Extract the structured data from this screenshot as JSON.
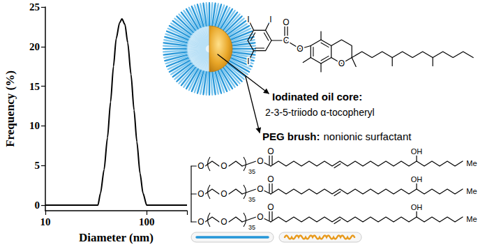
{
  "chart_data": {
    "type": "line",
    "xlabel": "Diameter (nm)",
    "ylabel": "Frequency (%)",
    "x": [
      10,
      33,
      35,
      38,
      41,
      44,
      47,
      50,
      54,
      57,
      61,
      65,
      70,
      75,
      80,
      86,
      92,
      100,
      250
    ],
    "values": [
      0,
      0,
      1.5,
      4.5,
      8.5,
      13,
      17.5,
      21,
      23,
      23.5,
      22.8,
      20.5,
      16.5,
      12,
      8,
      4,
      1.5,
      0,
      0
    ],
    "color": "#000000",
    "log": "x",
    "xlim": [
      10,
      250
    ],
    "xticks": [
      10,
      100
    ],
    "ylim": [
      -0.7,
      25
    ],
    "yticks": [
      0,
      5,
      10,
      15,
      20,
      25
    ],
    "grid": false
  },
  "diagram": {
    "core_label": "Iodinated oil core:",
    "core_name": "2-3-5-triiodo α-tocopheryl",
    "brush_label": "PEG brush:",
    "brush_name": "nonionic surfactant",
    "tocopheryl_ester": {
      "iodine": [
        "I",
        "I",
        "I"
      ],
      "carbonyl_carbon": "C",
      "carbonyl_oxygen": "O",
      "ester_oxygen": "O",
      "ring_oxygen": "O"
    },
    "surfactant_chains": [
      {
        "ether": "O",
        "peg_oxygen": "O",
        "repeat": "35",
        "ester": "O",
        "carbonyl": "O",
        "hydroxyl": "OH",
        "end": "Me"
      },
      {
        "ether": "O",
        "peg_oxygen": "O",
        "repeat": "35",
        "ester": "O",
        "carbonyl": "O",
        "hydroxyl": "OH",
        "end": "Me"
      },
      {
        "ether": "O",
        "peg_oxygen": "O",
        "repeat": "35",
        "ester": "O",
        "carbonyl": "O",
        "hydroxyl": "OH",
        "end": "Me"
      }
    ]
  }
}
